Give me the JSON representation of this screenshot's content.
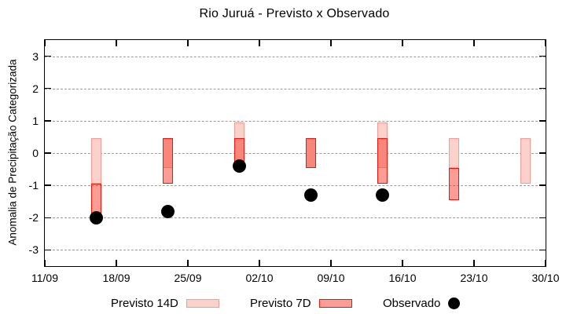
{
  "title": "Rio Juruá - Previsto x Observado",
  "colors": {
    "previsto14_fill": "#fbd1cb",
    "previsto14_border": "#f49c93",
    "previsto7_fill_rgba": "rgba(247,59,41,0.5)",
    "previsto7_border": "#ee1409",
    "observado": "#000000",
    "grid": "#9a9a9a",
    "frame": "#000000"
  },
  "chart_data": {
    "type": "bar",
    "subtype": "range-bars-with-scatter",
    "title": "Rio Juruá - Previsto x Observado",
    "xlabel": "",
    "ylabel": "Anomalia de Precipitação Categorizada",
    "ylim": [
      -3.5,
      3.5
    ],
    "yticks": [
      3,
      2,
      1,
      0,
      -1,
      -2,
      -3
    ],
    "grid": "horizontal-dashed",
    "x_axis": {
      "start_label": "11/09",
      "end_label": "30/10",
      "span_days": 49,
      "tick_days": [
        0,
        7,
        14,
        21,
        28,
        35,
        42,
        49
      ],
      "tick_labels": [
        "11/09",
        "18/09",
        "25/09",
        "02/10",
        "09/10",
        "16/10",
        "23/10",
        "30/10"
      ]
    },
    "legend_position": "bottom",
    "series": [
      {
        "name": "Previsto 14D",
        "type": "range",
        "data": [
          {
            "date": "16/09",
            "day": 5,
            "low": -0.95,
            "high": 0.45
          },
          {
            "date": "23/09",
            "day": 12,
            "low": -0.45,
            "high": 0.45
          },
          {
            "date": "30/09",
            "day": 19,
            "low": -0.45,
            "high": 0.95
          },
          {
            "date": "07/10",
            "day": 26,
            "low": -0.45,
            "high": 0.45
          },
          {
            "date": "14/10",
            "day": 33,
            "low": -0.45,
            "high": 0.95
          },
          {
            "date": "21/10",
            "day": 40,
            "low": -0.45,
            "high": 0.45
          },
          {
            "date": "28/10",
            "day": 47,
            "low": -0.95,
            "high": 0.45
          }
        ]
      },
      {
        "name": "Previsto 7D",
        "type": "range",
        "data": [
          {
            "date": "16/09",
            "day": 5,
            "low": -1.95,
            "high": -0.95
          },
          {
            "date": "23/09",
            "day": 12,
            "low": -0.95,
            "high": 0.45
          },
          {
            "date": "30/09",
            "day": 19,
            "low": -0.45,
            "high": 0.45
          },
          {
            "date": "07/10",
            "day": 26,
            "low": -0.45,
            "high": 0.45
          },
          {
            "date": "14/10",
            "day": 33,
            "low": -0.95,
            "high": 0.45
          },
          {
            "date": "21/10",
            "day": 40,
            "low": -1.45,
            "high": -0.45
          }
        ]
      },
      {
        "name": "Observado",
        "type": "scatter",
        "data": [
          {
            "date": "16/09",
            "day": 5,
            "value": -2.0
          },
          {
            "date": "23/09",
            "day": 12,
            "value": -1.8
          },
          {
            "date": "30/09",
            "day": 19,
            "value": -0.4
          },
          {
            "date": "07/10",
            "day": 26,
            "value": -1.3
          },
          {
            "date": "14/10",
            "day": 33,
            "value": -1.3
          }
        ]
      }
    ]
  },
  "legend": {
    "items": [
      {
        "label": "Previsto 14D",
        "swatch": "light-pink-box"
      },
      {
        "label": "Previsto 7D",
        "swatch": "red-box"
      },
      {
        "label": "Observado",
        "swatch": "black-dot"
      }
    ]
  }
}
